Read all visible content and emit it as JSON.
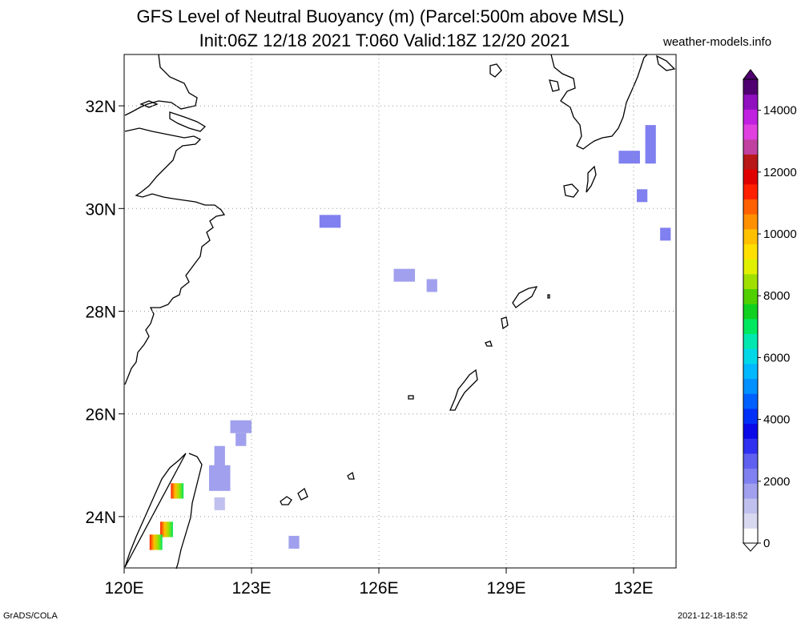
{
  "title_line1": "GFS Level of Neutral Buoyancy (m) (Parcel:500m above MSL)",
  "title_line2": "Init:06Z 12/18 2021 T:060 Valid:18Z 12/20 2021",
  "credit": "weather-models.info",
  "footer_left": "GrADS/COLA",
  "footer_right": "2021-12-18-18:52",
  "map": {
    "lon_range": [
      120,
      133
    ],
    "lat_range": [
      23,
      33
    ],
    "lon_ticks": [
      {
        "value": 120,
        "label": "120E"
      },
      {
        "value": 123,
        "label": "123E"
      },
      {
        "value": 126,
        "label": "126E"
      },
      {
        "value": 129,
        "label": "129E"
      },
      {
        "value": 132,
        "label": "132E"
      }
    ],
    "lat_ticks": [
      {
        "value": 32,
        "label": "32N"
      },
      {
        "value": 30,
        "label": "30N"
      },
      {
        "value": 28,
        "label": "28N"
      },
      {
        "value": 26,
        "label": "26N"
      },
      {
        "value": 24,
        "label": "24N"
      }
    ],
    "grid": true
  },
  "colorbar": {
    "range": [
      0,
      15000
    ],
    "labels": [
      "0",
      "2000",
      "4000",
      "6000",
      "8000",
      "10000",
      "12000",
      "14000"
    ],
    "label_values": [
      0,
      2000,
      4000,
      6000,
      8000,
      10000,
      12000,
      14000
    ],
    "colors": [
      "#ffffff",
      "#d8d8f0",
      "#c0c0ee",
      "#a0a0ee",
      "#8080f0",
      "#6060f0",
      "#3030f0",
      "#0a0ae8",
      "#0030f8",
      "#0060ff",
      "#0090ff",
      "#00b8ff",
      "#00d8e8",
      "#00e8b0",
      "#00e860",
      "#10d020",
      "#50d000",
      "#a0e000",
      "#e0f000",
      "#ffe000",
      "#ffc000",
      "#ff9000",
      "#ff6000",
      "#ff2000",
      "#e00000",
      "#b81818",
      "#c040a0",
      "#e040e0",
      "#c020e0",
      "#9010c0",
      "#500070"
    ]
  },
  "cells": [
    {
      "lon": 124.85,
      "lat": 29.75,
      "w": 0.5,
      "h": 0.25,
      "value": 2100
    },
    {
      "lon": 126.6,
      "lat": 28.7,
      "w": 0.5,
      "h": 0.25,
      "value": 1600
    },
    {
      "lon": 127.25,
      "lat": 28.5,
      "w": 0.25,
      "h": 0.25,
      "value": 1500
    },
    {
      "lon": 122.75,
      "lat": 25.75,
      "w": 0.5,
      "h": 0.25,
      "value": 1700
    },
    {
      "lon": 122.75,
      "lat": 25.5,
      "w": 0.25,
      "h": 0.25,
      "value": 1700
    },
    {
      "lon": 122.25,
      "lat": 25.0,
      "w": 0.25,
      "h": 0.75,
      "value": 1500
    },
    {
      "lon": 122.25,
      "lat": 24.75,
      "w": 0.5,
      "h": 0.5,
      "value": 1500
    },
    {
      "lon": 122.25,
      "lat": 24.25,
      "w": 0.25,
      "h": 0.25,
      "value": 1400
    },
    {
      "lon": 124.0,
      "lat": 23.5,
      "w": 0.25,
      "h": 0.25,
      "value": 1600
    },
    {
      "lon": 131.9,
      "lat": 31.0,
      "w": 0.5,
      "h": 0.25,
      "value": 2200
    },
    {
      "lon": 132.4,
      "lat": 31.25,
      "w": 0.25,
      "h": 0.75,
      "value": 2200
    },
    {
      "lon": 132.2,
      "lat": 30.25,
      "w": 0.25,
      "h": 0.25,
      "value": 2300
    },
    {
      "lon": 132.75,
      "lat": 29.5,
      "w": 0.25,
      "h": 0.25,
      "value": 2300
    }
  ],
  "hot_cells": [
    {
      "lon": 121.25,
      "lat": 24.5
    },
    {
      "lon": 121.0,
      "lat": 23.75
    },
    {
      "lon": 120.75,
      "lat": 23.5
    }
  ]
}
